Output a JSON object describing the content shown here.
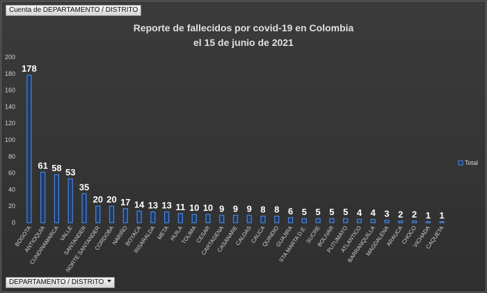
{
  "pivot": {
    "value_field_label": "Cuenta de DEPARTAMENTO / DISTRITO",
    "axis_field_label": "DEPARTAMENTO / DISTRITO"
  },
  "colors": {
    "bar_fill": "#1e3a66",
    "bar_stroke": "#4c86d8",
    "background": "#333333"
  },
  "chart_data": {
    "type": "bar",
    "title": "Reporte de fallecidos por covid-19 en Colombia",
    "subtitle": "el 15 de junio de 2021",
    "xlabel": "",
    "ylabel": "",
    "ylim": [
      0,
      200
    ],
    "yticks": [
      0,
      20,
      40,
      60,
      80,
      100,
      120,
      140,
      160,
      180,
      200
    ],
    "grid": false,
    "legend_position": "right",
    "categories": [
      "BOGOTA",
      "ANTIOQUIA",
      "CUNDINAMARCA",
      "VALLE",
      "SANTANDER",
      "NORTE SANTANDER",
      "CORDOBA",
      "NARIÑO",
      "BOYACA",
      "RISARALDA",
      "META",
      "HUILA",
      "TOLIMA",
      "CESAR",
      "CARTAGENA",
      "CASANARE",
      "CALDAS",
      "CAUCA",
      "QUINDIO",
      "GUAJIRA",
      "STA MARTA D.E.",
      "SUCRE",
      "BOLIVAR",
      "PUTUMAYO",
      "ATLANTICO",
      "BARRANQUILLA",
      "MAGDALENA",
      "ARAUCA",
      "CHOCO",
      "VICHADA",
      "CAQUETA"
    ],
    "series": [
      {
        "name": "Total",
        "values": [
          178,
          61,
          58,
          53,
          35,
          20,
          20,
          17,
          14,
          13,
          13,
          11,
          10,
          10,
          9,
          9,
          9,
          8,
          8,
          6,
          5,
          5,
          5,
          5,
          4,
          4,
          3,
          2,
          2,
          1,
          1
        ]
      }
    ]
  }
}
